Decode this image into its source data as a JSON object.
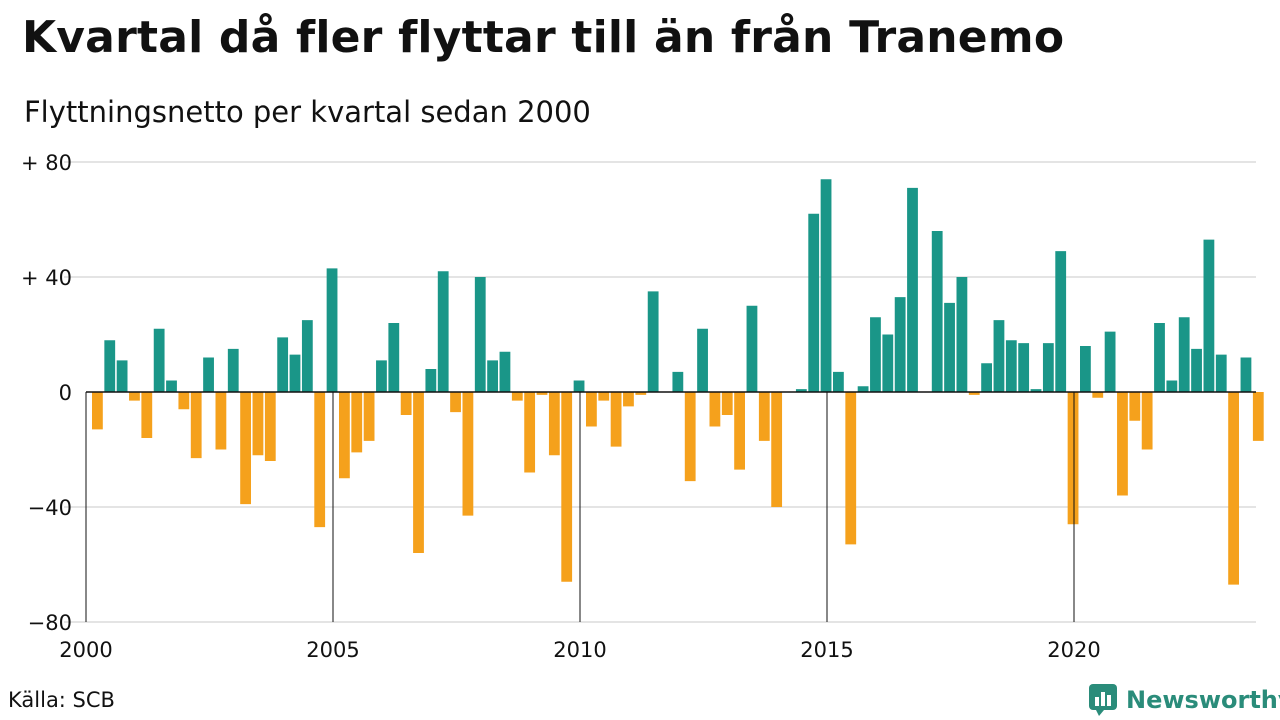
{
  "title": "Kvartal då fler flyttar till än från Tranemo",
  "subtitle": "Flyttningsnetto per kvartal sedan 2000",
  "source": "Källa: SCB",
  "brand": "Newsworthy",
  "colors": {
    "positive": "#1a9688",
    "negative": "#f5a11c",
    "grid": "#dcdcdc",
    "brand": "#2a8c7a"
  },
  "chart_data": {
    "type": "bar",
    "title": "Kvartal då fler flyttar till än från Tranemo",
    "subtitle": "Flyttningsnetto per kvartal sedan 2000",
    "x_start": "2000 Q1",
    "quarters_per_year": 4,
    "ylim": [
      -80,
      80
    ],
    "yticks": [
      {
        "value": 80,
        "label": "+ 80"
      },
      {
        "value": 40,
        "label": "+ 40"
      },
      {
        "value": 0,
        "label": "0"
      },
      {
        "value": -40,
        "label": "−40"
      },
      {
        "value": -80,
        "label": "−80"
      }
    ],
    "xticks": [
      {
        "value": 2000,
        "label": "2000"
      },
      {
        "value": 2005,
        "label": "2005"
      },
      {
        "value": 2010,
        "label": "2010"
      },
      {
        "value": 2015,
        "label": "2015"
      },
      {
        "value": 2020,
        "label": "2020"
      }
    ],
    "grid": true,
    "values": [
      -13,
      18,
      11,
      -3,
      -16,
      22,
      4,
      -6,
      -23,
      12,
      -20,
      15,
      -39,
      -22,
      -24,
      19,
      13,
      25,
      -47,
      43,
      -30,
      -21,
      -17,
      11,
      24,
      -8,
      -56,
      8,
      42,
      -7,
      -43,
      40,
      11,
      14,
      -3,
      -28,
      -1,
      -22,
      -66,
      4,
      -12,
      -3,
      -19,
      -5,
      -1,
      35,
      0,
      7,
      -31,
      22,
      -12,
      -8,
      -27,
      30,
      -17,
      -40,
      0,
      1,
      62,
      74,
      7,
      -53,
      2,
      26,
      20,
      33,
      71,
      0,
      56,
      31,
      40,
      -1,
      10,
      25,
      18,
      17,
      1,
      17,
      49,
      -46,
      16,
      -2,
      21,
      -36,
      -10,
      -20,
      24,
      4,
      26,
      15,
      53,
      13,
      -67,
      12,
      -17
    ]
  }
}
